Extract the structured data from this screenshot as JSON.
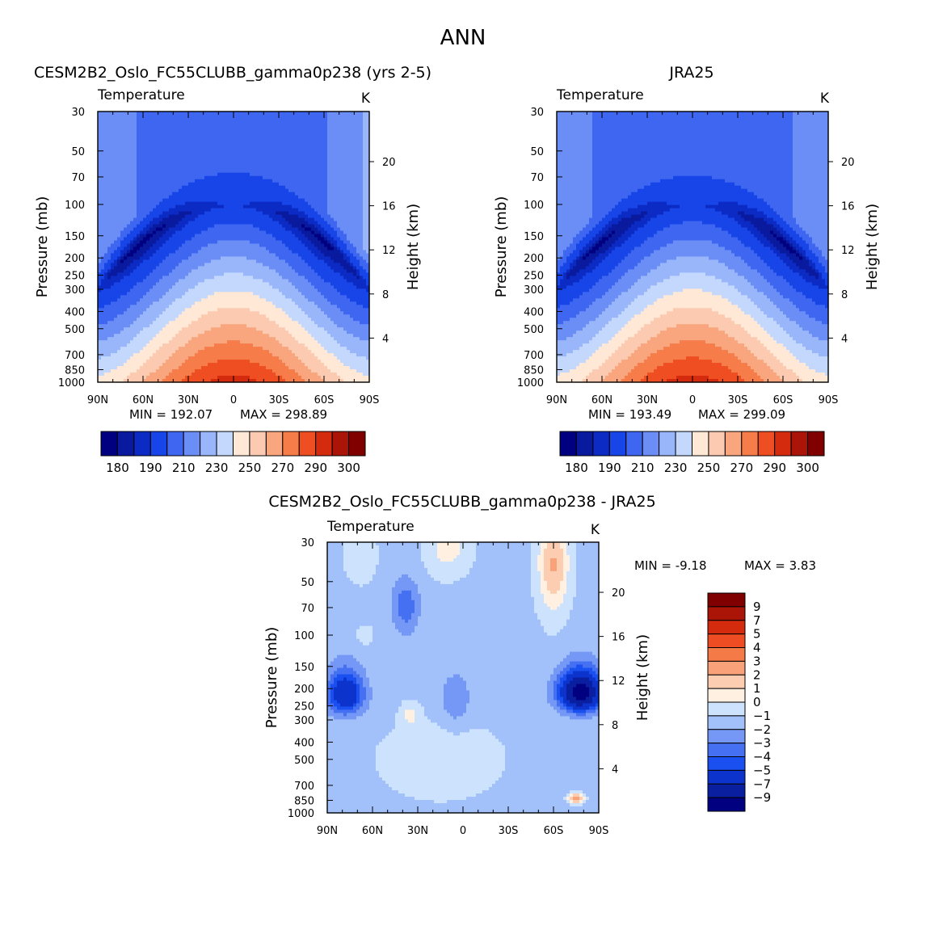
{
  "page_title": "ANN",
  "colors": {
    "temp_levels": [
      "#000080",
      "#0a1a9e",
      "#0c2bc4",
      "#1745e8",
      "#3f66f0",
      "#6b8ef6",
      "#9ab6fb",
      "#c4d8fe",
      "#ffe9d6",
      "#fccab0",
      "#f9a67e",
      "#f67c4a",
      "#ee4e22",
      "#d42a0e",
      "#aa1508",
      "#800000"
    ],
    "diff_levels": [
      "#000080",
      "#0a1ea0",
      "#0c33cc",
      "#1a4ff0",
      "#4670f2",
      "#7598f6",
      "#a2c0fa",
      "#cde2fd",
      "#fff0e2",
      "#fccdb0",
      "#f9a27a",
      "#f47a48",
      "#ee4c23",
      "#d42a0e",
      "#aa1508",
      "#800000"
    ]
  },
  "panels": {
    "model": {
      "title": "CESM2B2_Oslo_FC55CLUBB_gamma0p238 (yrs 2-5)",
      "variable": "Temperature",
      "units": "K",
      "min_label": "MIN = ",
      "min_value": "192.07",
      "max_label": "MAX = ",
      "max_value": "298.89"
    },
    "obs": {
      "title": "JRA25",
      "variable": "Temperature",
      "units": "K",
      "min_label": "MIN = ",
      "min_value": "193.49",
      "max_label": "MAX = ",
      "max_value": "299.09"
    },
    "diff": {
      "title": "CESM2B2_Oslo_FC55CLUBB_gamma0p238 - JRA25",
      "variable": "Temperature",
      "units": "K",
      "min_label": "MIN = ",
      "min_value": "-9.18",
      "max_label": "MAX = ",
      "max_value": "3.83"
    }
  },
  "chart_data": [
    {
      "type": "heatmap",
      "id": "model",
      "title": "CESM2B2_Oslo_FC55CLUBB_gamma0p238 (yrs 2-5)",
      "subtitle": "Temperature",
      "units": "K",
      "xlabel": "",
      "ylabel": "Pressure (mb)",
      "ylabel_right": "Height (km)",
      "x_ticks": [
        "90N",
        "60N",
        "30N",
        "0",
        "30S",
        "60S",
        "90S"
      ],
      "y_ticks": [
        30,
        50,
        70,
        100,
        150,
        200,
        250,
        300,
        400,
        500,
        700,
        850,
        1000
      ],
      "y_ticks_right": [
        20,
        16,
        12,
        8,
        4
      ],
      "levels": [
        180,
        185,
        190,
        200,
        210,
        220,
        230,
        240,
        250,
        260,
        270,
        280,
        290,
        295,
        300
      ],
      "legend_ticks": [
        "180",
        "190",
        "210",
        "230",
        "250",
        "270",
        "290",
        "300"
      ],
      "min": 192.07,
      "max": 298.89,
      "model": {
        "t0": 296.5,
        "polar": 3.5,
        "trop_core": 200,
        "strat_pole": 218
      }
    },
    {
      "type": "heatmap",
      "id": "obs",
      "title": "JRA25",
      "subtitle": "Temperature",
      "units": "K",
      "xlabel": "",
      "ylabel": "Pressure (mb)",
      "ylabel_right": "Height (km)",
      "x_ticks": [
        "90N",
        "60N",
        "30N",
        "0",
        "30S",
        "60S",
        "90S"
      ],
      "y_ticks": [
        30,
        50,
        70,
        100,
        150,
        200,
        250,
        300,
        400,
        500,
        700,
        850,
        1000
      ],
      "y_ticks_right": [
        20,
        16,
        12,
        8,
        4
      ],
      "levels": [
        180,
        185,
        190,
        200,
        210,
        220,
        230,
        240,
        250,
        260,
        270,
        280,
        290,
        295,
        300
      ],
      "legend_ticks": [
        "180",
        "190",
        "210",
        "230",
        "250",
        "270",
        "290",
        "300"
      ],
      "min": 193.49,
      "max": 299.09,
      "model": {
        "t0": 297.0,
        "polar": 0.0,
        "trop_core": 201,
        "strat_pole": 216
      }
    },
    {
      "type": "heatmap",
      "id": "diff",
      "title": "CESM2B2_Oslo_FC55CLUBB_gamma0p238 - JRA25",
      "subtitle": "Temperature",
      "units": "K",
      "xlabel": "",
      "ylabel": "Pressure (mb)",
      "ylabel_right": "Height (km)",
      "x_ticks": [
        "90N",
        "60N",
        "30N",
        "0",
        "30S",
        "60S",
        "90S"
      ],
      "y_ticks": [
        30,
        50,
        70,
        100,
        150,
        200,
        250,
        300,
        400,
        500,
        700,
        850,
        1000
      ],
      "y_ticks_right": [
        20,
        16,
        12,
        8,
        4
      ],
      "levels": [
        -9,
        -7,
        -5,
        -4,
        -3,
        -2,
        -1,
        0,
        1,
        2,
        3,
        4,
        5,
        7,
        9
      ],
      "legend_ticks": [
        "9",
        "7",
        "5",
        "4",
        "3",
        "2",
        "1",
        "0",
        "−1",
        "−2",
        "−3",
        "−4",
        "−5",
        "−7",
        "−9"
      ],
      "min": -9.18,
      "max": 3.83
    }
  ]
}
